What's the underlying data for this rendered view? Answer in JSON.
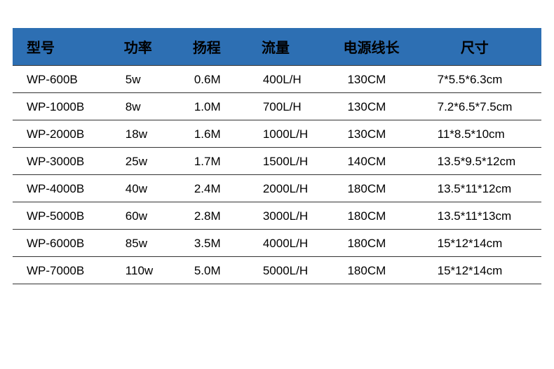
{
  "table": {
    "type": "table",
    "header_bg": "#2d6fb3",
    "border_color": "#333333",
    "header_fontsize": 20,
    "cell_fontsize": 17,
    "columns": [
      {
        "label": "型号",
        "width_pct": 20
      },
      {
        "label": "功率",
        "width_pct": 13
      },
      {
        "label": "扬程",
        "width_pct": 13
      },
      {
        "label": "流量",
        "width_pct": 16
      },
      {
        "label": "电源线长",
        "width_pct": 17
      },
      {
        "label": "尺寸",
        "width_pct": 21
      }
    ],
    "rows": [
      [
        "WP-600B",
        "5w",
        "0.6M",
        "400L/H",
        "130CM",
        "7*5.5*6.3cm"
      ],
      [
        "WP-1000B",
        "8w",
        "1.0M",
        "700L/H",
        "130CM",
        "7.2*6.5*7.5cm"
      ],
      [
        "WP-2000B",
        "18w",
        "1.6M",
        "1000L/H",
        "130CM",
        "11*8.5*10cm"
      ],
      [
        "WP-3000B",
        "25w",
        "1.7M",
        "1500L/H",
        "140CM",
        "13.5*9.5*12cm"
      ],
      [
        "WP-4000B",
        "40w",
        "2.4M",
        "2000L/H",
        "180CM",
        "13.5*11*12cm"
      ],
      [
        "WP-5000B",
        "60w",
        "2.8M",
        "3000L/H",
        "180CM",
        "13.5*11*13cm"
      ],
      [
        "WP-6000B",
        "85w",
        "3.5M",
        "4000L/H",
        "180CM",
        "15*12*14cm"
      ],
      [
        "WP-7000B",
        "110w",
        "5.0M",
        "5000L/H",
        "180CM",
        "15*12*14cm"
      ]
    ]
  }
}
